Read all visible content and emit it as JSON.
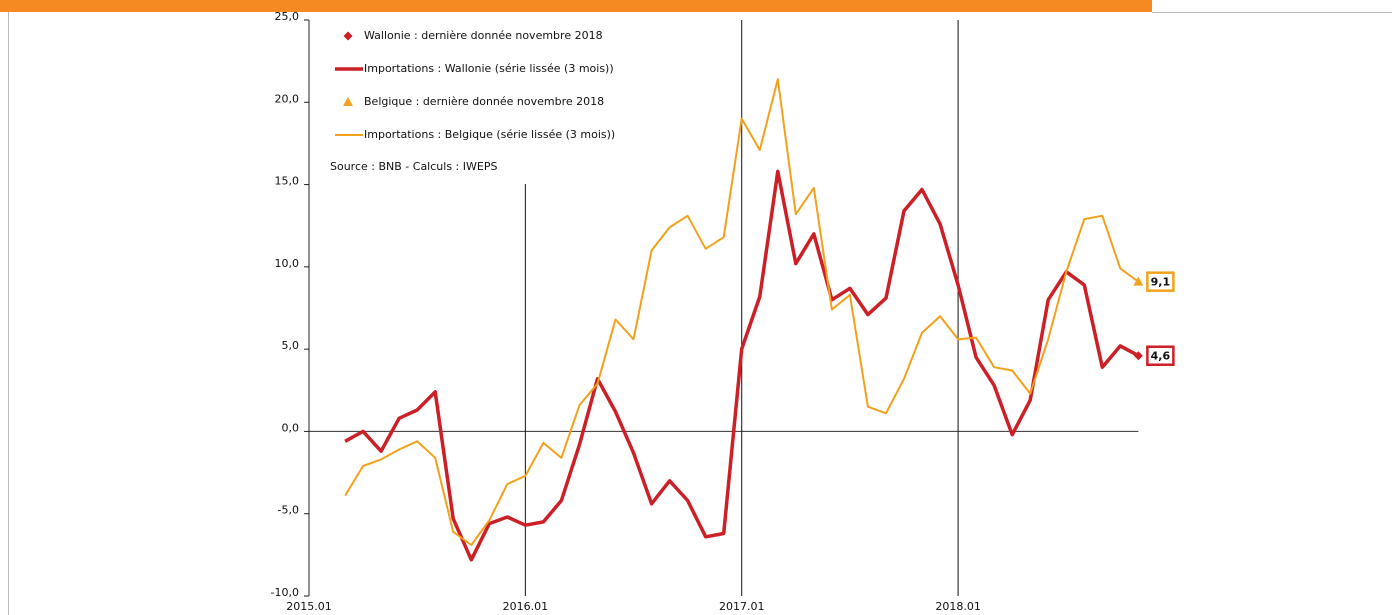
{
  "chart_data": {
    "type": "line",
    "annotations": [
      "Source : BNB - Calculs : IWEPS"
    ],
    "categories": [
      "2015.01",
      null,
      null,
      null,
      null,
      null,
      null,
      null,
      null,
      null,
      null,
      null,
      "2016.01",
      null,
      null,
      null,
      null,
      null,
      null,
      null,
      null,
      null,
      null,
      null,
      "2017.01",
      null,
      null,
      null,
      null,
      null,
      null,
      null,
      null,
      null,
      null,
      null,
      "2018.01",
      null,
      null,
      null,
      null,
      null,
      null,
      null,
      null,
      null,
      null
    ],
    "series": [
      {
        "name": "Wallonie : dernière donnée novembre 2018",
        "color": "#cc1f26",
        "marker": "diamond",
        "values": [
          null,
          null,
          null,
          null,
          null,
          null,
          null,
          null,
          null,
          null,
          null,
          null,
          null,
          null,
          null,
          null,
          null,
          null,
          null,
          null,
          null,
          null,
          null,
          null,
          null,
          null,
          null,
          null,
          null,
          null,
          null,
          null,
          null,
          null,
          null,
          null,
          null,
          null,
          null,
          null,
          null,
          null,
          null,
          null,
          null,
          null,
          4.6
        ],
        "value_labels": [
          null,
          null,
          null,
          null,
          null,
          null,
          null,
          null,
          null,
          null,
          null,
          null,
          null,
          null,
          null,
          null,
          null,
          null,
          null,
          null,
          null,
          null,
          null,
          null,
          null,
          null,
          null,
          null,
          null,
          null,
          null,
          null,
          null,
          null,
          null,
          null,
          null,
          null,
          null,
          null,
          null,
          null,
          null,
          null,
          null,
          null,
          "4,6"
        ]
      },
      {
        "name": "Importations : Wallonie (série lissée (3 mois))",
        "color": "#cc1f26",
        "marker": "line-thick",
        "values": [
          null,
          null,
          -0.6,
          0.0,
          -1.2,
          0.8,
          1.3,
          2.4,
          -5.3,
          -7.8,
          -5.6,
          -5.2,
          -5.7,
          -5.5,
          -4.2,
          -0.8,
          3.2,
          1.2,
          -1.3,
          -4.4,
          -3.0,
          -4.2,
          -6.4,
          -6.2,
          5.0,
          8.2,
          15.8,
          10.2,
          12.0,
          8.0,
          8.7,
          7.1,
          8.1,
          13.4,
          14.7,
          12.6,
          8.9,
          4.5,
          2.8,
          -0.2,
          1.9,
          8.0,
          9.7,
          8.9,
          3.9,
          5.2,
          4.6
        ]
      },
      {
        "name": "Belgique : dernière donnée novembre  2018",
        "color": "#f2a11c",
        "marker": "triangle",
        "values": [
          null,
          null,
          null,
          null,
          null,
          null,
          null,
          null,
          null,
          null,
          null,
          null,
          null,
          null,
          null,
          null,
          null,
          null,
          null,
          null,
          null,
          null,
          null,
          null,
          null,
          null,
          null,
          null,
          null,
          null,
          null,
          null,
          null,
          null,
          null,
          null,
          null,
          null,
          null,
          null,
          null,
          null,
          null,
          null,
          null,
          null,
          9.1
        ],
        "value_labels": [
          null,
          null,
          null,
          null,
          null,
          null,
          null,
          null,
          null,
          null,
          null,
          null,
          null,
          null,
          null,
          null,
          null,
          null,
          null,
          null,
          null,
          null,
          null,
          null,
          null,
          null,
          null,
          null,
          null,
          null,
          null,
          null,
          null,
          null,
          null,
          null,
          null,
          null,
          null,
          null,
          null,
          null,
          null,
          null,
          null,
          null,
          "9,1"
        ]
      },
      {
        "name": "Importations : Belgique (série lissée (3 mois))",
        "color": "#f2a11c",
        "marker": "line-thin",
        "values": [
          null,
          null,
          -3.9,
          -2.1,
          -1.7,
          -1.1,
          -0.6,
          -1.6,
          -6.1,
          -6.9,
          -5.4,
          -3.2,
          -2.7,
          -0.7,
          -1.6,
          1.6,
          2.9,
          6.8,
          5.6,
          11.0,
          12.4,
          13.1,
          11.1,
          11.8,
          19.0,
          17.1,
          21.4,
          13.2,
          14.8,
          7.4,
          8.3,
          1.5,
          1.1,
          3.2,
          6.0,
          7.0,
          5.6,
          5.7,
          3.9,
          3.7,
          2.3,
          5.6,
          9.7,
          12.9,
          13.1,
          9.9,
          9.1
        ]
      }
    ],
    "ylim": [
      -10,
      25
    ],
    "yticks": [
      {
        "value": -10,
        "label": "-10,0"
      },
      {
        "value": -5,
        "label": "-5,0"
      },
      {
        "value": 0,
        "label": "0,0"
      },
      {
        "value": 5,
        "label": "5,0"
      },
      {
        "value": 10,
        "label": "10,0"
      },
      {
        "value": 15,
        "label": "15,0"
      },
      {
        "value": 20,
        "label": "20,0"
      },
      {
        "value": 25,
        "label": "25,0"
      }
    ],
    "year_lines": true
  }
}
